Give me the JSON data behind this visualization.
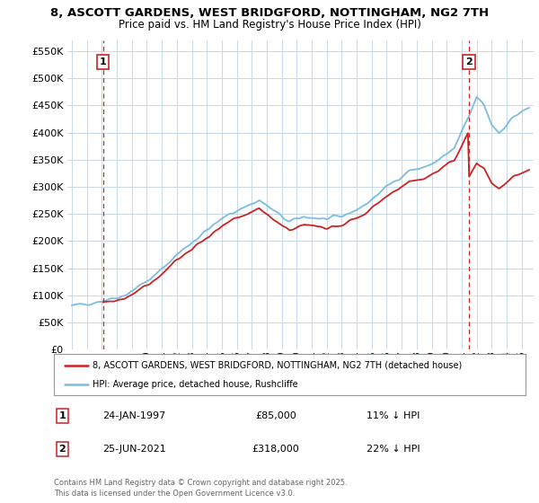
{
  "title_line1": "8, ASCOTT GARDENS, WEST BRIDGFORD, NOTTINGHAM, NG2 7TH",
  "title_line2": "Price paid vs. HM Land Registry's House Price Index (HPI)",
  "ylabel_ticks": [
    "£0",
    "£50K",
    "£100K",
    "£150K",
    "£200K",
    "£250K",
    "£300K",
    "£350K",
    "£400K",
    "£450K",
    "£500K",
    "£550K"
  ],
  "ytick_values": [
    0,
    50000,
    100000,
    150000,
    200000,
    250000,
    300000,
    350000,
    400000,
    450000,
    500000,
    550000
  ],
  "ylim": [
    0,
    570000
  ],
  "xlim_start": 1994.7,
  "xlim_end": 2025.8,
  "xticks": [
    1995,
    1996,
    1997,
    1998,
    1999,
    2000,
    2001,
    2002,
    2003,
    2004,
    2005,
    2006,
    2007,
    2008,
    2009,
    2010,
    2011,
    2012,
    2013,
    2014,
    2015,
    2016,
    2017,
    2018,
    2019,
    2020,
    2021,
    2022,
    2023,
    2024,
    2025
  ],
  "hpi_color": "#7bbde0",
  "paid_color": "#cc2222",
  "marker1_x": 1997.07,
  "marker1_y": 85000,
  "marker1_label": "1",
  "marker1_date": "24-JAN-1997",
  "marker1_price": "£85,000",
  "marker1_note": "11% ↓ HPI",
  "marker2_x": 2021.48,
  "marker2_y": 318000,
  "marker2_label": "2",
  "marker2_date": "25-JUN-2021",
  "marker2_price": "£318,000",
  "marker2_note": "22% ↓ HPI",
  "legend_label_red": "8, ASCOTT GARDENS, WEST BRIDGFORD, NOTTINGHAM, NG2 7TH (detached house)",
  "legend_label_blue": "HPI: Average price, detached house, Rushcliffe",
  "footer": "Contains HM Land Registry data © Crown copyright and database right 2025.\nThis data is licensed under the Open Government Licence v3.0.",
  "background_color": "#ffffff",
  "grid_color": "#c8d8e8"
}
